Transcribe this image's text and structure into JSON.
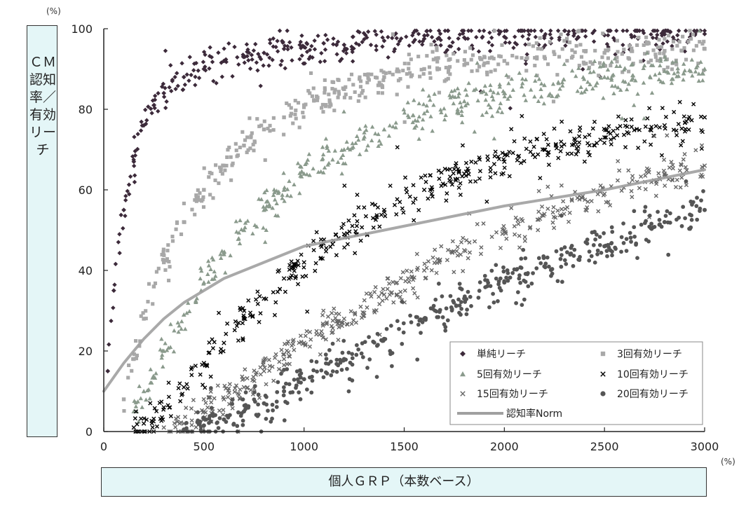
{
  "y_unit": "(%)",
  "x_unit": "(%)",
  "ylabel": "ＣＭ認知率／有効リーチ",
  "xlabel": "個人ＧＲＰ（本数ベース）",
  "chart_data": {
    "type": "scatter",
    "title": "",
    "xlabel": "個人ＧＲＰ（本数ベース）",
    "ylabel": "ＣＭ認知率／有効リーチ",
    "xlim": [
      0,
      3000
    ],
    "ylim": [
      0,
      100
    ],
    "x_ticks": [
      "0",
      "500",
      "1000",
      "1500",
      "2000",
      "2500",
      "3000"
    ],
    "y_ticks": [
      "0",
      "20",
      "40",
      "60",
      "80",
      "100"
    ],
    "grid": false,
    "legend_position": "bottom-right",
    "series": [
      {
        "name": "単純リーチ",
        "marker": "diamond",
        "color": "#3c2a3a",
        "x": [
          20,
          50,
          100,
          150,
          200,
          250,
          300,
          400,
          500,
          600,
          700,
          800,
          900,
          1000,
          1200,
          1400,
          1600,
          1800,
          2000,
          2200,
          2500,
          2800,
          3000
        ],
        "y": [
          15,
          35,
          55,
          67,
          76,
          81,
          84,
          88,
          90,
          92,
          93,
          94,
          95,
          95.5,
          96,
          97,
          97.5,
          97.8,
          98,
          98.2,
          98.4,
          98.6,
          98.7
        ]
      },
      {
        "name": "3回有効リーチ",
        "marker": "square",
        "color": "#a8a8a8",
        "x": [
          100,
          150,
          200,
          250,
          300,
          400,
          500,
          600,
          700,
          800,
          900,
          1000,
          1200,
          1400,
          1600,
          1800,
          2000,
          2200,
          2500,
          2800,
          3000
        ],
        "y": [
          8,
          18,
          28,
          36,
          42,
          52,
          60,
          66,
          71,
          75,
          78,
          81,
          85,
          88,
          90,
          91,
          92,
          93,
          94,
          94.5,
          95
        ]
      },
      {
        "name": "5回有効リーチ",
        "marker": "triangle",
        "color": "#8a9a8c",
        "x": [
          150,
          200,
          300,
          400,
          500,
          600,
          700,
          800,
          900,
          1000,
          1200,
          1400,
          1600,
          1800,
          2000,
          2200,
          2500,
          2800,
          3000
        ],
        "y": [
          5,
          10,
          20,
          29,
          37,
          44,
          50,
          55,
          60,
          64,
          70,
          75,
          79,
          82,
          84,
          86,
          88,
          89.5,
          90
        ]
      },
      {
        "name": "10回有効リーチ",
        "marker": "x",
        "color": "#000000",
        "x": [
          150,
          200,
          300,
          400,
          500,
          600,
          700,
          800,
          900,
          1000,
          1200,
          1400,
          1600,
          1800,
          2000,
          2200,
          2500,
          2800,
          3000
        ],
        "y": [
          1,
          2,
          6,
          11,
          17,
          22,
          28,
          33,
          38,
          42,
          49,
          55,
          60,
          64,
          67,
          70,
          73,
          76,
          78
        ]
      },
      {
        "name": "15回有効リーチ",
        "marker": "x",
        "color": "#666666",
        "x": [
          300,
          400,
          500,
          600,
          700,
          800,
          900,
          1000,
          1200,
          1400,
          1600,
          1800,
          2000,
          2200,
          2500,
          2800,
          3000
        ],
        "y": [
          1,
          2,
          5,
          8,
          11,
          15,
          18,
          22,
          28,
          34,
          40,
          45,
          50,
          54,
          59,
          64,
          66
        ]
      },
      {
        "name": "20回有効リーチ",
        "marker": "circle",
        "color": "#555555",
        "x": [
          400,
          500,
          600,
          700,
          800,
          900,
          1000,
          1200,
          1400,
          1600,
          1800,
          2000,
          2200,
          2500,
          2800,
          3000
        ],
        "y": [
          0.5,
          1.5,
          3,
          5,
          7,
          10,
          13,
          18,
          23,
          28,
          33,
          37,
          41,
          46,
          52,
          55
        ]
      },
      {
        "name": "認知率Norm",
        "marker": "line",
        "color": "#a0a0a0",
        "x": [
          0,
          100,
          200,
          300,
          400,
          500,
          600,
          800,
          1000,
          1200,
          1500,
          2000,
          2500,
          3000
        ],
        "y": [
          10,
          17,
          23,
          28,
          32,
          35,
          38,
          42,
          46,
          48,
          51,
          56,
          60,
          65
        ]
      }
    ]
  }
}
